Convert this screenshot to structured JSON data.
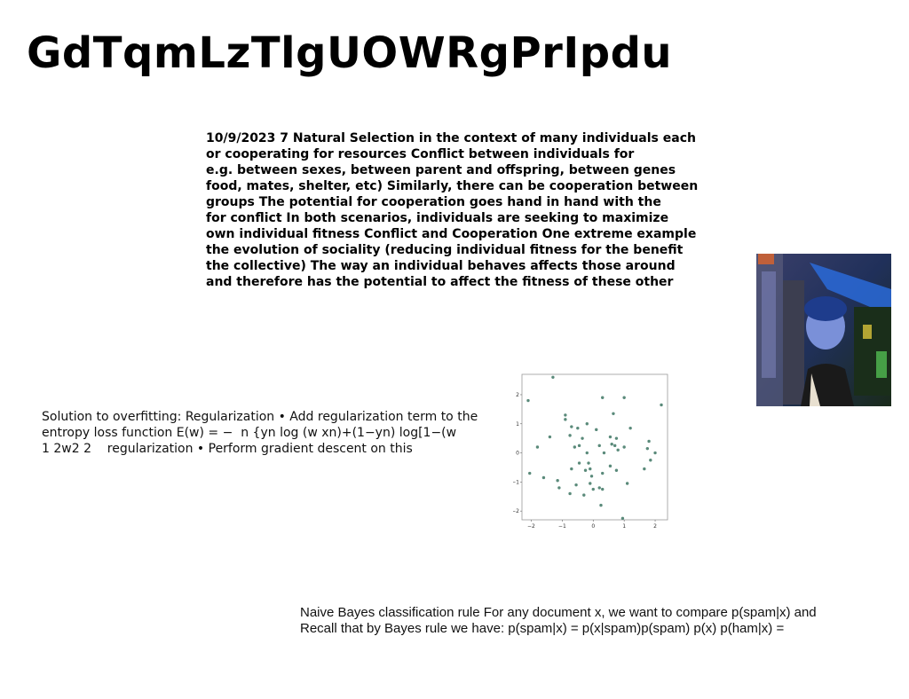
{
  "slide": {
    "title": "GdTqmLzTlgUOWRgPrIpdu",
    "block1": "10/9/2023 7 Natural Selection in the context of many individuals each\nor cooperating for resources Conflict between individuals for\ne.g. between sexes, between parent and offspring, between genes\nfood, mates, shelter, etc) Similarly, there can be cooperation between\ngroups The potential for cooperation goes hand in hand with the\nfor conflict In both scenarios, individuals are seeking to maximize\nown individual fitness Conflict and Cooperation One extreme example\nthe evolution of sociality (reducing individual fitness for the benefit\nthe collective) The way an individual behaves affects those around\nand therefore has the potential to affect the fitness of these other",
    "block2": "Solution to overfitting: Regularization • Add regularization term to the\nentropy loss function E(w) = − ￼ n {yn log ￼(w ￼xn)+(1−yn) log[1−￼(w\n1 2￼￼w￼2 2 ￼ ￼￼ ￼ regularization • Perform gradient descent on this",
    "block3": "Naive Bayes classification rule For any document x, we want to compare p(spam|x) and\nRecall that by Bayes rule we have: p(spam|x) = p(x|spam)p(spam) p(x) p(ham|x) ="
  },
  "chart_data": {
    "type": "scatter",
    "xlim": [
      -2.3,
      2.4
    ],
    "ylim": [
      -2.3,
      2.7
    ],
    "xticks": [
      "−2",
      "−1",
      "0",
      "1",
      "2"
    ],
    "yticks": [
      "2",
      "1",
      "0",
      "−1",
      "−2"
    ],
    "marker_color": "#5a8a7a",
    "grid": false,
    "points": [
      [
        -1.3,
        2.6
      ],
      [
        -2.1,
        1.8
      ],
      [
        -0.9,
        1.3
      ],
      [
        0.3,
        1.9
      ],
      [
        1.0,
        1.9
      ],
      [
        2.2,
        1.65
      ],
      [
        -0.9,
        1.15
      ],
      [
        -0.7,
        0.9
      ],
      [
        -0.5,
        0.85
      ],
      [
        -0.2,
        1.0
      ],
      [
        0.1,
        0.8
      ],
      [
        0.65,
        1.35
      ],
      [
        1.2,
        0.85
      ],
      [
        -1.4,
        0.55
      ],
      [
        -0.75,
        0.6
      ],
      [
        -0.35,
        0.5
      ],
      [
        0.55,
        0.55
      ],
      [
        0.75,
        0.5
      ],
      [
        1.8,
        0.4
      ],
      [
        -1.8,
        0.2
      ],
      [
        -0.6,
        0.2
      ],
      [
        -0.45,
        0.25
      ],
      [
        0.2,
        0.25
      ],
      [
        0.6,
        0.3
      ],
      [
        0.7,
        0.25
      ],
      [
        1.0,
        0.2
      ],
      [
        1.75,
        0.15
      ],
      [
        2.0,
        0.0
      ],
      [
        -0.2,
        0.0
      ],
      [
        0.35,
        0.0
      ],
      [
        0.8,
        0.1
      ],
      [
        1.85,
        -0.25
      ],
      [
        -0.45,
        -0.35
      ],
      [
        -0.15,
        -0.35
      ],
      [
        0.55,
        -0.45
      ],
      [
        -0.7,
        -0.55
      ],
      [
        -0.25,
        -0.6
      ],
      [
        -0.1,
        -0.55
      ],
      [
        0.75,
        -0.6
      ],
      [
        1.65,
        -0.55
      ],
      [
        -2.05,
        -0.7
      ],
      [
        -1.6,
        -0.85
      ],
      [
        -0.05,
        -0.8
      ],
      [
        0.3,
        -0.7
      ],
      [
        -1.15,
        -0.95
      ],
      [
        1.1,
        -1.05
      ],
      [
        -0.55,
        -1.1
      ],
      [
        -0.1,
        -1.05
      ],
      [
        0.0,
        -1.25
      ],
      [
        0.2,
        -1.2
      ],
      [
        0.3,
        -1.25
      ],
      [
        -1.1,
        -1.2
      ],
      [
        -0.75,
        -1.4
      ],
      [
        -0.3,
        -1.45
      ],
      [
        0.25,
        -1.8
      ],
      [
        0.95,
        -2.25
      ]
    ]
  }
}
